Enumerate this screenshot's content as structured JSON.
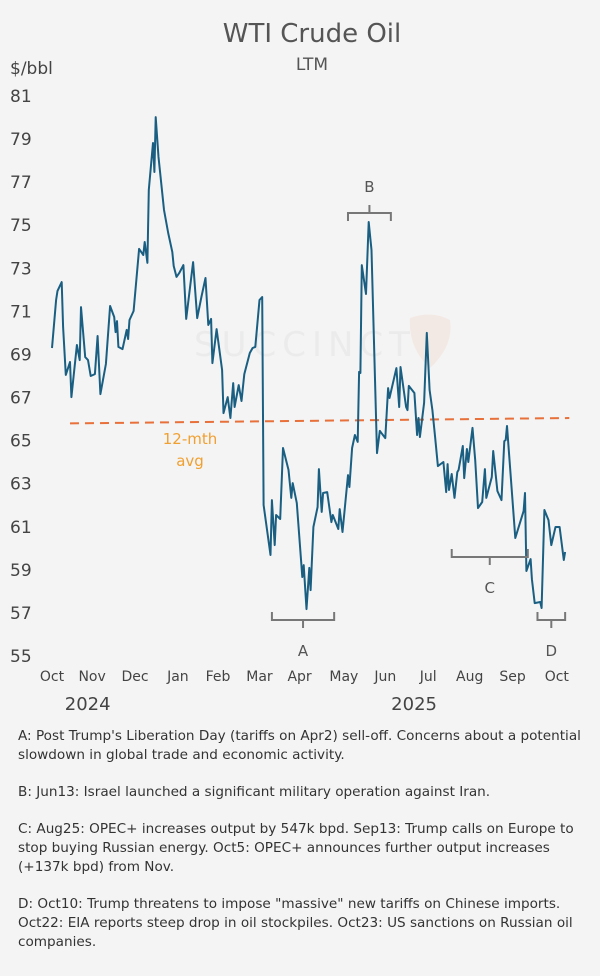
{
  "chart_data": {
    "type": "line",
    "title": "WTI Crude Oil",
    "subtitle": "LTM",
    "ylabel": "$/bbl",
    "xlabel": "",
    "ylim": [
      55,
      81
    ],
    "yticks": [
      "55",
      "57",
      "59",
      "61",
      "63",
      "65",
      "67",
      "69",
      "71",
      "73",
      "75",
      "77",
      "79",
      "81"
    ],
    "x_unit": "days since 2024-10-01",
    "xlim": [
      0,
      371
    ],
    "xticks": [
      {
        "label": "Oct",
        "day": 0
      },
      {
        "label": "Nov",
        "day": 29
      },
      {
        "label": "Dec",
        "day": 60
      },
      {
        "label": "Jan",
        "day": 91
      },
      {
        "label": "Feb",
        "day": 120
      },
      {
        "label": "Mar",
        "day": 150
      },
      {
        "label": "Apr",
        "day": 179
      },
      {
        "label": "May",
        "day": 211
      },
      {
        "label": "Jun",
        "day": 241
      },
      {
        "label": "Jul",
        "day": 272
      },
      {
        "label": "Aug",
        "day": 302
      },
      {
        "label": "Sep",
        "day": 333
      },
      {
        "label": "Oct",
        "day": 365
      }
    ],
    "year_labels": [
      {
        "label": "2024",
        "day": 20
      },
      {
        "label": "2025",
        "day": 256
      }
    ],
    "grid": false,
    "series": [
      {
        "name": "WTI",
        "color": "#1a5f82",
        "x": [
          0,
          3,
          4,
          7,
          8,
          10,
          13,
          14,
          18,
          20,
          21,
          24,
          26,
          28,
          31,
          33,
          35,
          39,
          42,
          45,
          46,
          47,
          48,
          51,
          54,
          55,
          56,
          59,
          63,
          66,
          67,
          69,
          70,
          73,
          74,
          75,
          77,
          81,
          84,
          87,
          88,
          90,
          92,
          95,
          97,
          102,
          105,
          108,
          111,
          113,
          115,
          116,
          119,
          123,
          124,
          127,
          129,
          131,
          132,
          135,
          137,
          139,
          143,
          145,
          147,
          150,
          152,
          153,
          158,
          159,
          161,
          162,
          165,
          167,
          171,
          173,
          174,
          177,
          181,
          182,
          184,
          186,
          187,
          189,
          192,
          193,
          195,
          196,
          199,
          202,
          203,
          207,
          208,
          210,
          214,
          215,
          217,
          219,
          221,
          222,
          223,
          224,
          227,
          229,
          231,
          235,
          237,
          241,
          243,
          244,
          249,
          251,
          252,
          256,
          257,
          258,
          262,
          264,
          265,
          266,
          269,
          271,
          273,
          275,
          277,
          279,
          283,
          285,
          286,
          287,
          289,
          291,
          293,
          294,
          297,
          298,
          300,
          301,
          304,
          306,
          308,
          311,
          313,
          314,
          318,
          319,
          322,
          325,
          327,
          328,
          329,
          335,
          341,
          342,
          343,
          346,
          347,
          349,
          353,
          354,
          356,
          359,
          361,
          364,
          367,
          370,
          371
        ],
        "y": [
          69.3,
          71.53,
          71.95,
          72.36,
          70.27,
          68.05,
          68.65,
          67.02,
          69.44,
          68.74,
          71.2,
          68.88,
          68.74,
          68.0,
          68.09,
          69.86,
          67.16,
          68.56,
          71.25,
          70.74,
          70.04,
          70.55,
          69.35,
          69.25,
          70.14,
          69.72,
          70.6,
          71.02,
          73.9,
          73.62,
          74.22,
          73.25,
          76.64,
          78.82,
          77.47,
          80.02,
          78.17,
          75.71,
          74.64,
          73.76,
          73.11,
          72.6,
          72.78,
          73.15,
          70.65,
          73.29,
          70.69,
          71.67,
          72.55,
          70.37,
          70.65,
          68.6,
          70.18,
          68.28,
          66.28,
          67.02,
          66.05,
          67.67,
          66.56,
          67.58,
          66.84,
          68.09,
          69.07,
          69.3,
          69.35,
          71.53,
          71.67,
          62.01,
          59.69,
          62.24,
          60.15,
          61.55,
          61.36,
          64.66,
          63.64,
          62.34,
          63.03,
          62.1,
          58.67,
          59.22,
          57.18,
          59.09,
          58.06,
          60.99,
          61.92,
          63.68,
          61.69,
          62.57,
          62.61,
          61.22,
          61.55,
          60.9,
          61.82,
          60.76,
          63.4,
          62.85,
          64.66,
          65.26,
          64.94,
          68.19,
          68.14,
          73.15,
          71.81,
          75.15,
          73.85,
          64.42,
          65.45,
          65.12,
          67.44,
          66.98,
          68.37,
          66.56,
          68.42,
          66.56,
          66.42,
          67.54,
          67.21,
          65.26,
          66.05,
          65.17,
          66.75,
          70.0,
          67.35,
          66.42,
          65.17,
          63.82,
          64.01,
          62.61,
          63.91,
          62.71,
          63.45,
          62.34,
          63.54,
          63.64,
          64.75,
          63.26,
          64.61,
          64.01,
          65.59,
          64.1,
          61.87,
          62.15,
          63.68,
          62.34,
          63.31,
          64.52,
          62.66,
          62.24,
          64.98,
          65.03,
          65.68,
          60.48,
          61.73,
          62.57,
          58.95,
          59.5,
          58.57,
          57.46,
          57.51,
          57.23,
          61.78,
          61.31,
          60.15,
          60.99,
          60.99,
          59.46,
          59.83
        ]
      }
    ],
    "reference_line": {
      "label_line1": "12-mth",
      "label_line2": "avg",
      "start_day": 13,
      "end_day": 374,
      "start_value": 65.8,
      "end_value": 66.05,
      "color": "#e8703a",
      "label_color": "#f0a030"
    },
    "annotations": [
      {
        "label": "A",
        "start_day": 159,
        "end_day": 204,
        "position": "below"
      },
      {
        "label": "B",
        "start_day": 214,
        "end_day": 245,
        "position": "above"
      },
      {
        "label": "C",
        "start_day": 289,
        "end_day": 344,
        "position": "below"
      },
      {
        "label": "D",
        "start_day": 351,
        "end_day": 371,
        "position": "below"
      }
    ],
    "watermark": "SUCCINCT"
  },
  "notes": [
    "A: Post Trump's Liberation Day (tariffs on Apr2) sell-off. Concerns about a potential slowdown in global trade and economic activity.",
    "B: Jun13: Israel launched a significant military operation against Iran.",
    "C: Aug25: OPEC+ increases output by 547k bpd. Sep13: Trump calls on Europe to stop buying Russian energy. Oct5: OPEC+ announces further output increases (+137k bpd) from Nov.",
    "D: Oct10: Trump threatens to impose \"massive\" new tariffs on Chinese imports. Oct22: EIA reports steep drop in oil stockpiles. Oct23: US sanctions on Russian oil companies."
  ]
}
